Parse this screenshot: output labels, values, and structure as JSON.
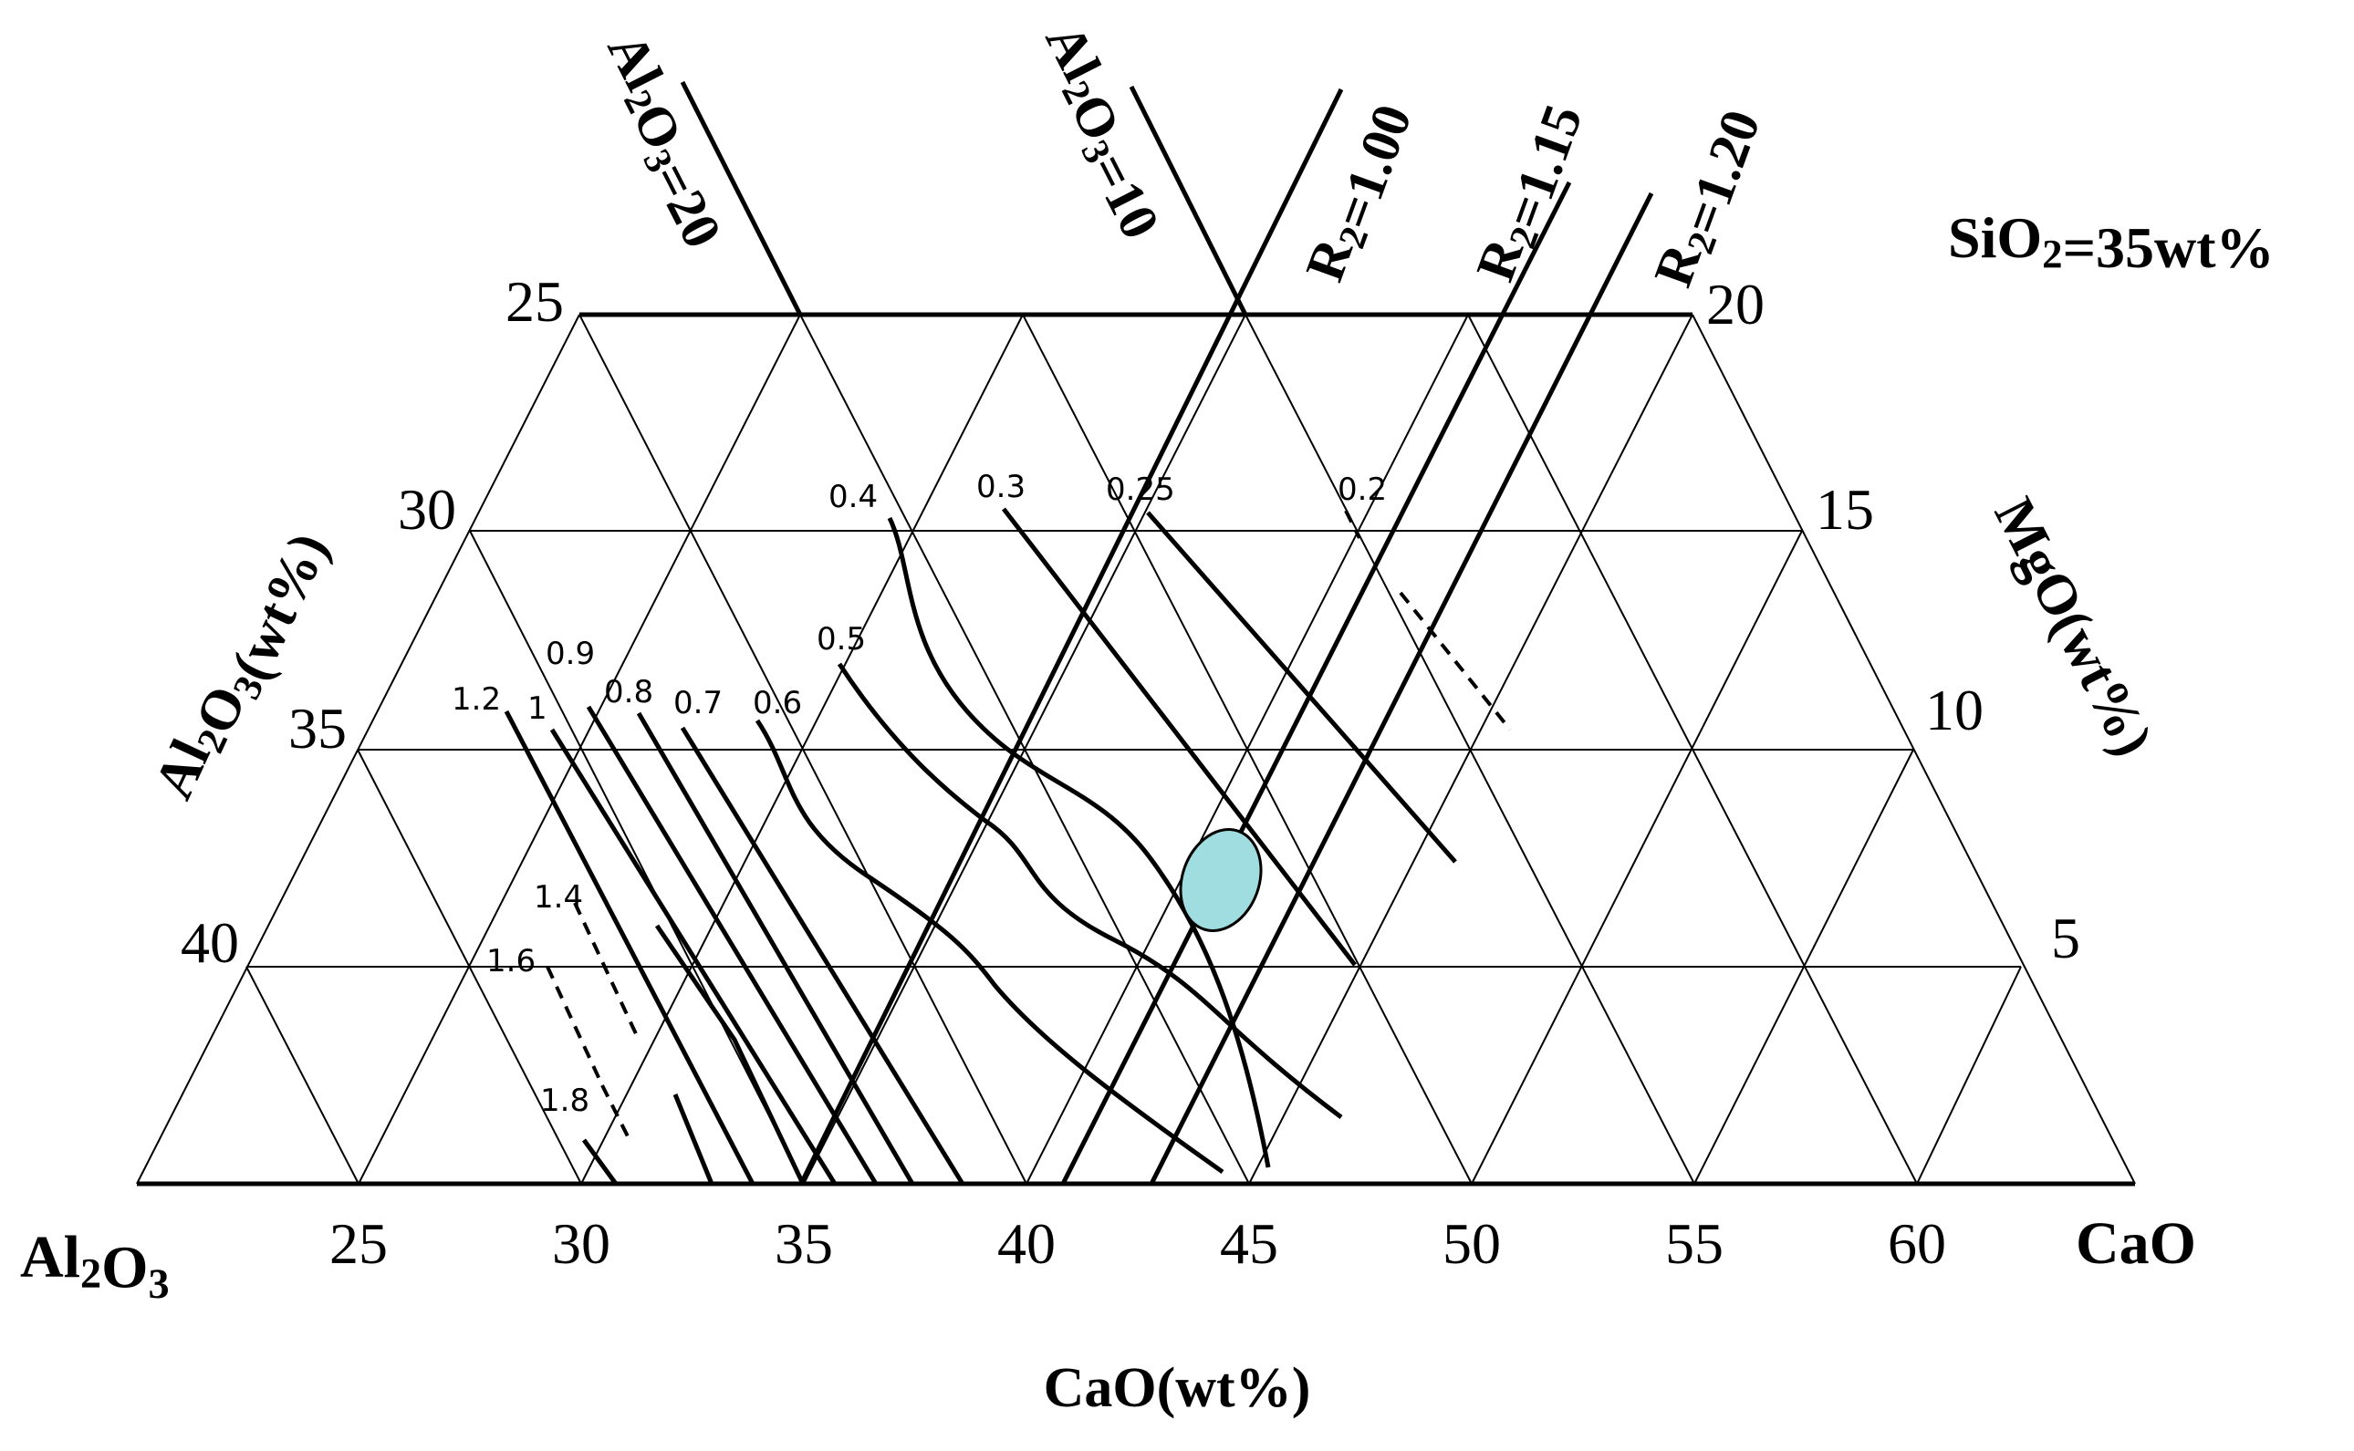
{
  "diagram": {
    "corner_left": "Al2O3",
    "corner_right": "CaO",
    "axis_left_label": "Al2O3(wt%)",
    "axis_right_label": "MgO(wt%)",
    "axis_bottom_label": "CaO(wt%)",
    "sio2_note": "SiO2=35wt%",
    "cao_ticks": [
      "25",
      "30",
      "35",
      "40",
      "45",
      "50",
      "55",
      "60"
    ],
    "al2o3_ticks": [
      "25",
      "30",
      "35",
      "40"
    ],
    "mgo_ticks": [
      "20",
      "15",
      "10",
      "5"
    ],
    "al2o3_lines": [
      "Al2O3=20",
      "Al2O3=10"
    ],
    "r2_lines": [
      "R2=1.00",
      "R2=1.15",
      "R2=1.20"
    ],
    "contour_labels": [
      "0.4",
      "0.3",
      "0.25",
      "0.2",
      "0.5",
      "0.9",
      "1.2",
      "1",
      "0.8",
      "0.7",
      "0.6",
      "1.4",
      "1.6",
      "1.8"
    ],
    "highlight_color": "#9fdde0",
    "grid_color": "#000000"
  }
}
